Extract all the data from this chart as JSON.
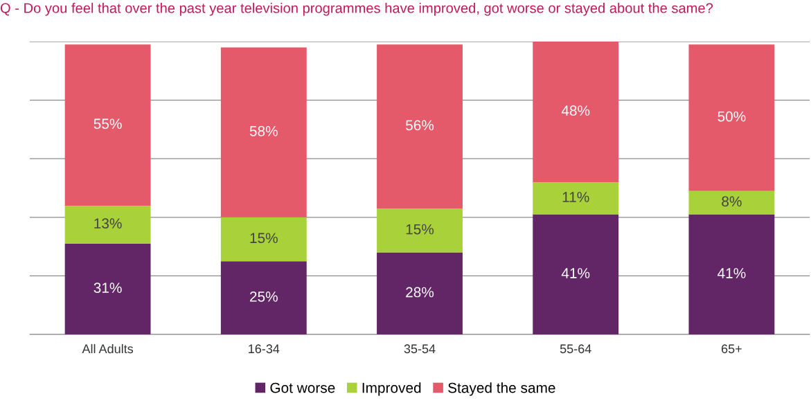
{
  "chart_data": {
    "type": "bar",
    "stacked": true,
    "title": "Q - Do you feel that over the past year television programmes have improved, got worse or stayed about the same?",
    "categories": [
      "All Adults",
      "16-34",
      "35-54",
      "55-64",
      "65+"
    ],
    "series": [
      {
        "name": "Got worse",
        "color": "#622566",
        "values": [
          31,
          25,
          28,
          41,
          41
        ],
        "value_labels": [
          "31%",
          "25%",
          "28%",
          "41%",
          "41%"
        ]
      },
      {
        "name": "Improved",
        "color": "#a9d13a",
        "values": [
          13,
          15,
          15,
          11,
          8
        ],
        "value_labels": [
          "13%",
          "15%",
          "15%",
          "11%",
          "8%"
        ]
      },
      {
        "name": "Stayed the same",
        "color": "#e55a6a",
        "values": [
          55,
          58,
          56,
          48,
          50
        ],
        "value_labels": [
          "55%",
          "58%",
          "56%",
          "48%",
          "50%"
        ]
      }
    ],
    "ylim": [
      0,
      100
    ],
    "yticks": [
      {
        "value": 0,
        "label": null
      },
      {
        "value": 20,
        "label": null
      },
      {
        "value": 40,
        "label": null
      },
      {
        "value": 60,
        "label": null
      },
      {
        "value": 80,
        "label": null
      },
      {
        "value": 100,
        "label": null
      }
    ],
    "tick_labels": "x",
    "grid": "y",
    "legend": "bottom"
  }
}
